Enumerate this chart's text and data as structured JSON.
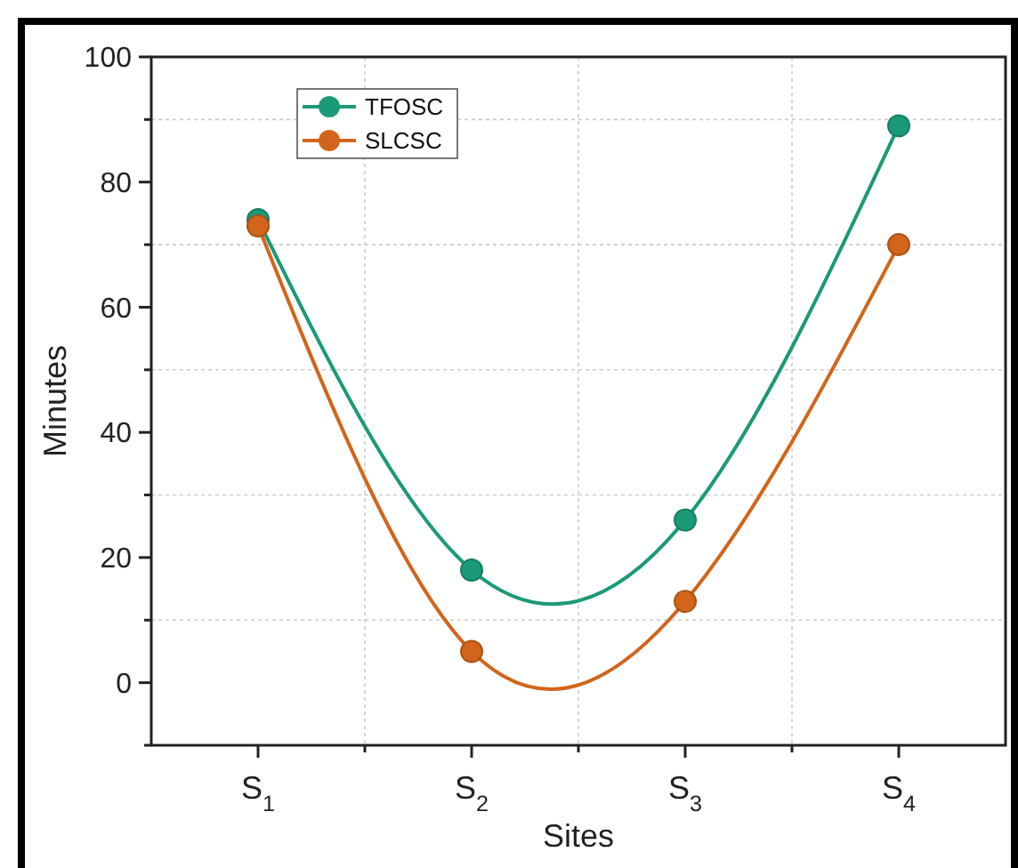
{
  "chart_data": {
    "type": "line",
    "xlabel": "Sites",
    "ylabel": "Minutes",
    "categories": [
      "S$_{1}$",
      "S$_{2}$",
      "S$_{3}$",
      "S$_{4}$"
    ],
    "series": [
      {
        "name": "TFOSC",
        "color": "#1b9a78",
        "values": [
          74,
          18,
          26,
          89
        ]
      },
      {
        "name": "SLCSC",
        "color": "#d2651b",
        "values": [
          73,
          5,
          13,
          70
        ]
      }
    ],
    "ylim": [
      -10,
      100
    ],
    "yticks": [
      {
        "value": -10,
        "label": null
      },
      0,
      {
        "value": 10,
        "label": null
      },
      20,
      {
        "value": 30,
        "label": null
      },
      40,
      {
        "value": 50,
        "label": null
      },
      60,
      {
        "value": 70,
        "label": null
      },
      80,
      {
        "value": 90,
        "label": null
      },
      100
    ],
    "grid": true,
    "legend": "top left",
    "marker": "circle",
    "line_style": "solid"
  }
}
